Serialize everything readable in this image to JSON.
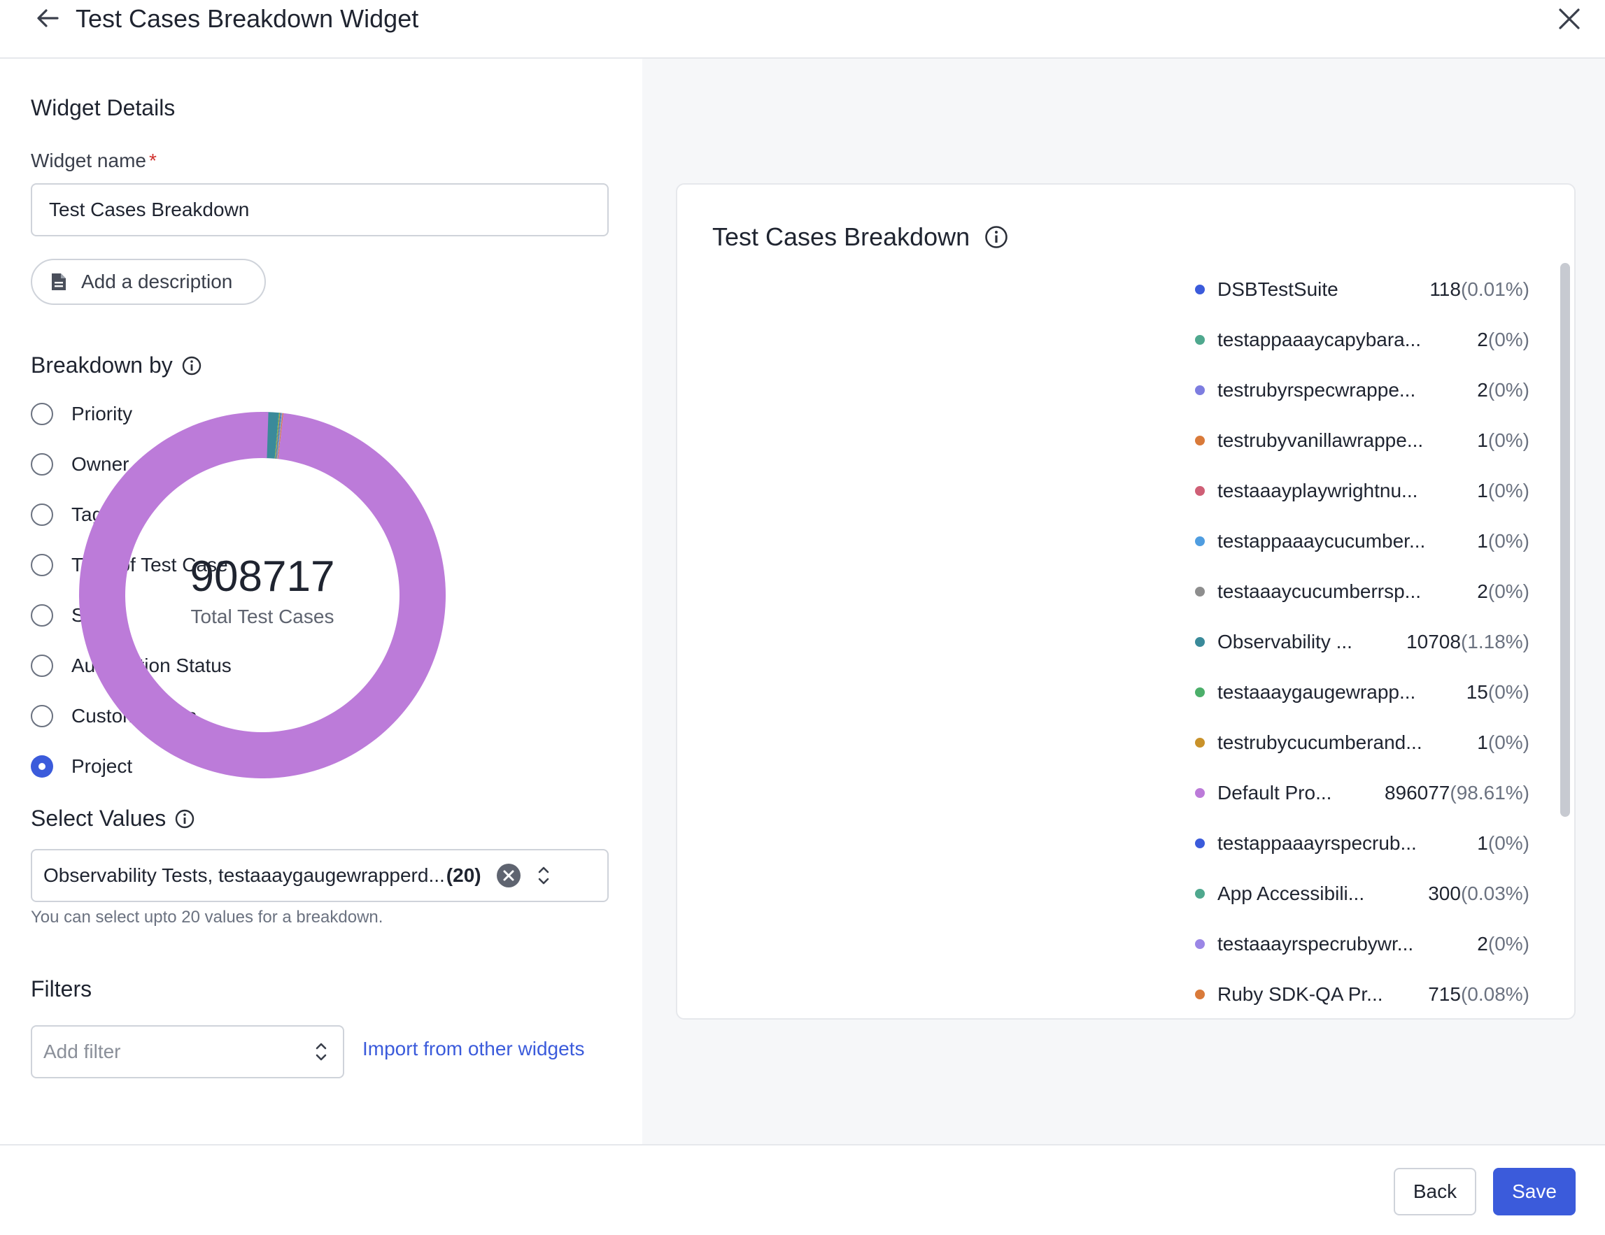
{
  "header": {
    "title": "Test Cases Breakdown Widget"
  },
  "left": {
    "details_title": "Widget Details",
    "widget_name_label": "Widget name",
    "required_mark": "*",
    "widget_name_value": "Test Cases Breakdown",
    "add_description_label": "Add a description",
    "breakdown_title": "Breakdown by",
    "breakdown_options": [
      "Priority",
      "Owner",
      "Tags",
      "Type of Test Case",
      "State",
      "Automation Status",
      "Custom Fields",
      "Project"
    ],
    "breakdown_selected": "Project",
    "select_values_title": "Select Values",
    "select_values_text": "Observability Tests, testaaaygaugewrapperd...",
    "select_values_count": "(20)",
    "select_values_helper": "You can select upto 20 values for a breakdown.",
    "filters_title": "Filters",
    "add_filter_placeholder": "Add filter",
    "import_link": "Import from other widgets"
  },
  "card": {
    "title": "Test Cases Breakdown",
    "total": "908717",
    "total_label": "Total Test Cases"
  },
  "chart_data": {
    "type": "pie",
    "donut": true,
    "title": "Test Cases Breakdown",
    "total": 908717,
    "series": [
      {
        "name": "DSBTestSuite",
        "value": 118,
        "percent": "0.01%",
        "color": "#3b5bdb"
      },
      {
        "name": "testappaaaycapybara...",
        "value": 2,
        "percent": "0%",
        "color": "#4fa88e"
      },
      {
        "name": "testrubyrspecwrappe...",
        "value": 2,
        "percent": "0%",
        "color": "#7d7de0"
      },
      {
        "name": "testrubyvanillawrappe...",
        "value": 1,
        "percent": "0%",
        "color": "#d97a3a"
      },
      {
        "name": "testaaayplaywrightnu...",
        "value": 1,
        "percent": "0%",
        "color": "#cf5f76"
      },
      {
        "name": "testappaaaycucumber...",
        "value": 1,
        "percent": "0%",
        "color": "#4f9de0"
      },
      {
        "name": "testaaaycucumberrsp...",
        "value": 2,
        "percent": "0%",
        "color": "#8e8e8e"
      },
      {
        "name": "Observability ...",
        "value": 10708,
        "percent": "1.18%",
        "color": "#3a8a9a"
      },
      {
        "name": "testaaaygaugewrapp...",
        "value": 15,
        "percent": "0%",
        "color": "#4caf6a"
      },
      {
        "name": "testrubycucumberand...",
        "value": 1,
        "percent": "0%",
        "color": "#c9922a"
      },
      {
        "name": "Default Pro...",
        "value": 896077,
        "percent": "98.61%",
        "color": "#bc7bd9"
      },
      {
        "name": "testappaaayrspecrub...",
        "value": 1,
        "percent": "0%",
        "color": "#3b5bdb"
      },
      {
        "name": "App Accessibili...",
        "value": 300,
        "percent": "0.03%",
        "color": "#4fa88e"
      },
      {
        "name": "testaaayrspecrubywr...",
        "value": 2,
        "percent": "0%",
        "color": "#9b86e6"
      },
      {
        "name": "Ruby SDK-QA Pr...",
        "value": 715,
        "percent": "0.08%",
        "color": "#d97a3a"
      }
    ]
  },
  "footer": {
    "back_label": "Back",
    "save_label": "Save"
  },
  "colors": {
    "primary": "#3b5bdb",
    "donut_main": "#bc7bd9"
  }
}
